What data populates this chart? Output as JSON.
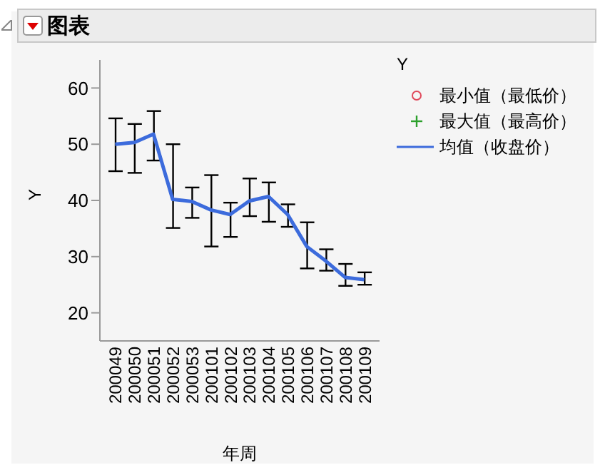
{
  "chart_data": {
    "type": "line",
    "title": "图表",
    "xlabel": "年周",
    "ylabel": "Y",
    "legend_title": "Y",
    "legend": "right",
    "grid": false,
    "categories": [
      "200049",
      "200050",
      "200051",
      "200052",
      "200053",
      "200101",
      "200102",
      "200103",
      "200104",
      "200105",
      "200106",
      "200107",
      "200108",
      "200109"
    ],
    "ylim": [
      15,
      65
    ],
    "yticks": [
      20,
      30,
      40,
      50,
      60
    ],
    "series": [
      {
        "name": "最小值（最低价）",
        "marker": "circle",
        "color": "#e0485a",
        "values": [
          null,
          null,
          null,
          null,
          null,
          null,
          null,
          null,
          null,
          null,
          null,
          null,
          null,
          null
        ]
      },
      {
        "name": "最大值（最高价）",
        "marker": "cross",
        "color": "#2ca02c",
        "values": [
          null,
          null,
          null,
          null,
          null,
          null,
          null,
          null,
          null,
          null,
          null,
          null,
          null,
          null
        ]
      },
      {
        "name": "均值（收盘价）",
        "marker": "none",
        "color": "#3c6bdc",
        "values": [
          50.0,
          50.3,
          51.8,
          40.2,
          39.8,
          38.3,
          37.5,
          39.9,
          40.7,
          37.5,
          31.8,
          29.2,
          26.3,
          25.9
        ],
        "errors": [
          [
            45.2,
            54.6
          ],
          [
            44.9,
            53.6
          ],
          [
            47.1,
            55.9
          ],
          [
            35.1,
            50.0
          ],
          [
            36.9,
            42.3
          ],
          [
            31.8,
            44.5
          ],
          [
            33.5,
            39.6
          ],
          [
            37.2,
            43.9
          ],
          [
            36.2,
            43.2
          ],
          [
            35.3,
            39.3
          ],
          [
            27.9,
            36.1
          ],
          [
            27.5,
            31.3
          ],
          [
            24.8,
            28.7
          ],
          [
            25.0,
            27.2
          ]
        ]
      }
    ]
  }
}
